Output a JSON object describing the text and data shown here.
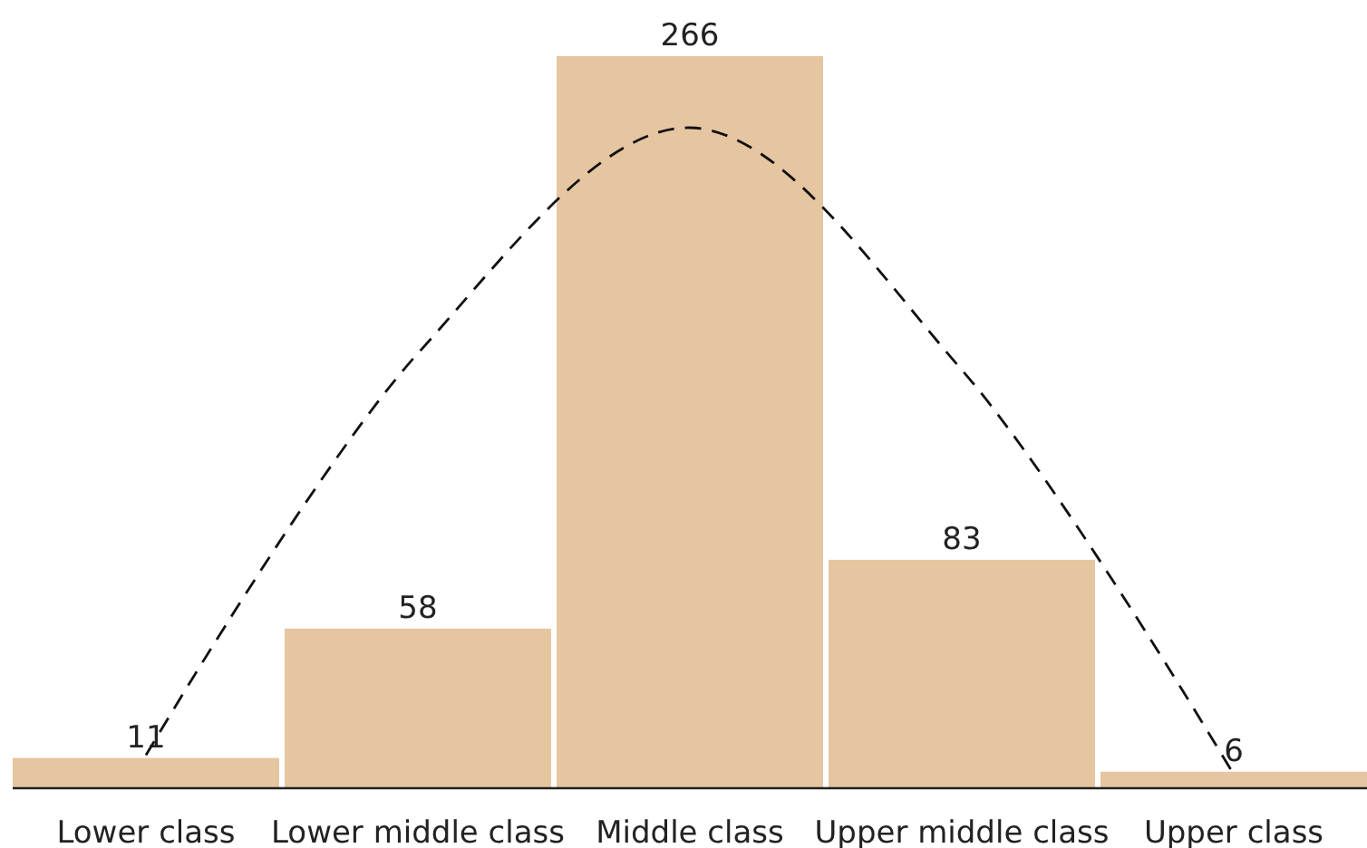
{
  "chart_data": {
    "type": "bar",
    "categories": [
      "Lower class",
      "Lower middle class",
      "Middle class",
      "Upper middle class",
      "Upper class"
    ],
    "series": [
      {
        "color": "#e6c5a1",
        "values": [
          11,
          58,
          266,
          83,
          6
        ],
        "value_labels": [
          "11",
          "58",
          "266",
          "83",
          "6"
        ]
      },
      {
        "type": "line",
        "color": "#111111",
        "line_style": "dashed",
        "marker": "none",
        "values": [
          12,
          158,
          240,
          152,
          5
        ]
      }
    ]
  }
}
